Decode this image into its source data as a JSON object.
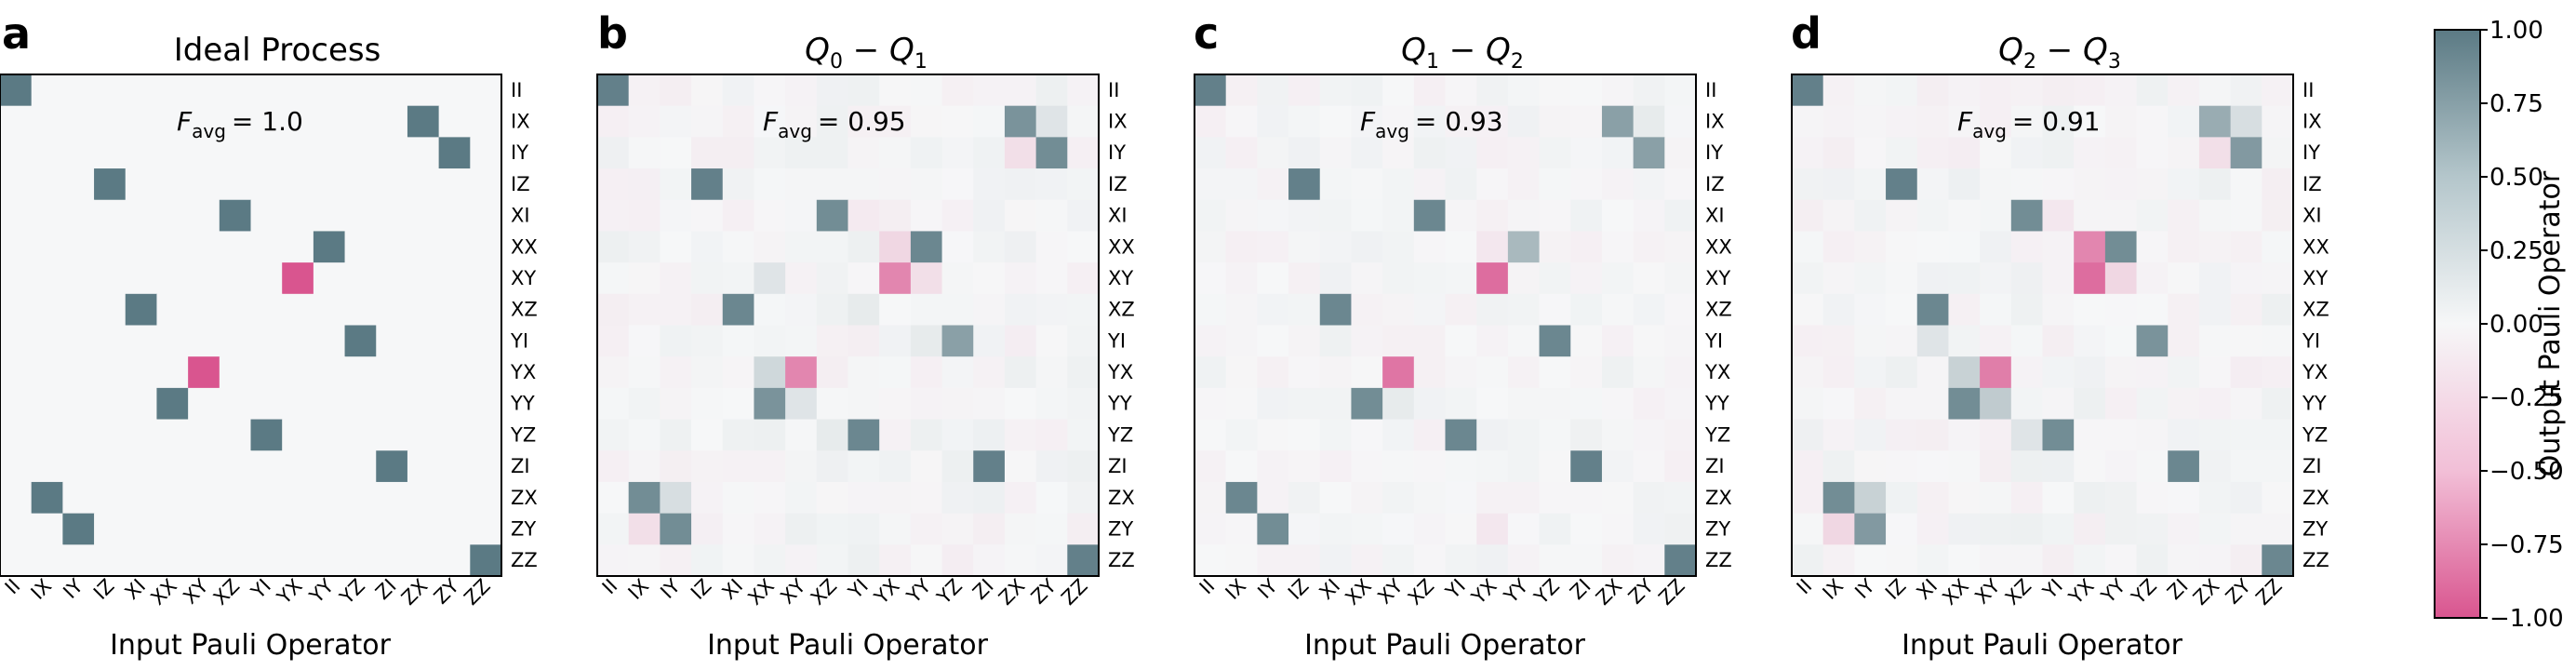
{
  "chart_data": {
    "type": "heatmap",
    "operators": [
      "II",
      "IX",
      "IY",
      "IZ",
      "XI",
      "XX",
      "XY",
      "XZ",
      "YI",
      "YX",
      "YY",
      "YZ",
      "ZI",
      "ZX",
      "ZY",
      "ZZ"
    ],
    "xlabel": "Input Pauli Operator",
    "ylabel": "Output Pauli Operator",
    "colorbar": {
      "min": -1.0,
      "max": 1.0,
      "ticks": [
        "1.00",
        "0.75",
        "0.50",
        "0.25",
        "0.00",
        "−0.25",
        "−0.50",
        "−0.75",
        "−1.00"
      ],
      "positive_color": "#5b7a84",
      "neutral_color": "#f6f7f8",
      "negative_color": "#d9558f"
    },
    "panels": [
      {
        "letter": "a",
        "title": "Ideal Process",
        "favg_label": "F",
        "favg_sub": "avg",
        "favg_value": "= 1.0",
        "noise": 0.0,
        "entries": [
          [
            0,
            0,
            1
          ],
          [
            1,
            13,
            1
          ],
          [
            2,
            14,
            1
          ],
          [
            3,
            3,
            1
          ],
          [
            4,
            7,
            1
          ],
          [
            5,
            10,
            1
          ],
          [
            6,
            9,
            -1
          ],
          [
            7,
            4,
            1
          ],
          [
            8,
            11,
            1
          ],
          [
            9,
            6,
            -1
          ],
          [
            10,
            5,
            1
          ],
          [
            11,
            8,
            1
          ],
          [
            12,
            12,
            1
          ],
          [
            13,
            1,
            1
          ],
          [
            14,
            2,
            1
          ],
          [
            15,
            15,
            1
          ]
        ]
      },
      {
        "letter": "b",
        "title_parts": [
          "Q",
          "0",
          " − ",
          "Q",
          "1"
        ],
        "favg_label": "F",
        "favg_sub": "avg",
        "favg_value": "= 0.95",
        "noise": 0.06,
        "entries": [
          [
            0,
            0,
            0.95
          ],
          [
            1,
            13,
            0.8
          ],
          [
            1,
            14,
            0.15
          ],
          [
            2,
            13,
            -0.15
          ],
          [
            2,
            14,
            0.85
          ],
          [
            3,
            3,
            0.95
          ],
          [
            4,
            7,
            0.85
          ],
          [
            4,
            8,
            -0.08
          ],
          [
            5,
            9,
            -0.2
          ],
          [
            5,
            10,
            0.9
          ],
          [
            6,
            5,
            0.15
          ],
          [
            6,
            9,
            -0.7
          ],
          [
            6,
            10,
            -0.15
          ],
          [
            7,
            4,
            0.9
          ],
          [
            7,
            8,
            0.1
          ],
          [
            8,
            11,
            0.7
          ],
          [
            8,
            10,
            0.1
          ],
          [
            9,
            5,
            0.25
          ],
          [
            9,
            6,
            -0.7
          ],
          [
            10,
            5,
            0.8
          ],
          [
            10,
            6,
            0.15
          ],
          [
            11,
            8,
            0.9
          ],
          [
            11,
            7,
            0.1
          ],
          [
            12,
            12,
            0.95
          ],
          [
            13,
            1,
            0.85
          ],
          [
            13,
            2,
            0.2
          ],
          [
            14,
            1,
            -0.15
          ],
          [
            14,
            2,
            0.85
          ],
          [
            15,
            15,
            0.95
          ]
        ]
      },
      {
        "letter": "c",
        "title_parts": [
          "Q",
          "1",
          " − ",
          "Q",
          "2"
        ],
        "favg_label": "F",
        "favg_sub": "avg",
        "favg_value": "= 0.93",
        "noise": 0.05,
        "entries": [
          [
            0,
            0,
            0.95
          ],
          [
            1,
            13,
            0.7
          ],
          [
            1,
            14,
            0.1
          ],
          [
            2,
            14,
            0.7
          ],
          [
            3,
            3,
            0.95
          ],
          [
            4,
            7,
            0.9
          ],
          [
            5,
            10,
            0.5
          ],
          [
            5,
            9,
            -0.1
          ],
          [
            6,
            9,
            -0.85
          ],
          [
            7,
            4,
            0.9
          ],
          [
            8,
            11,
            0.9
          ],
          [
            9,
            6,
            -0.8
          ],
          [
            10,
            5,
            0.85
          ],
          [
            10,
            6,
            0.1
          ],
          [
            11,
            8,
            0.9
          ],
          [
            12,
            12,
            0.95
          ],
          [
            13,
            1,
            0.9
          ],
          [
            14,
            2,
            0.85
          ],
          [
            14,
            9,
            -0.1
          ],
          [
            15,
            15,
            0.95
          ]
        ]
      },
      {
        "letter": "d",
        "title_parts": [
          "Q",
          "2",
          " − ",
          "Q",
          "3"
        ],
        "favg_label": "F",
        "favg_sub": "avg",
        "favg_value": "= 0.91",
        "noise": 0.06,
        "entries": [
          [
            0,
            0,
            0.95
          ],
          [
            1,
            13,
            0.6
          ],
          [
            1,
            14,
            0.2
          ],
          [
            2,
            13,
            -0.15
          ],
          [
            2,
            14,
            0.75
          ],
          [
            3,
            3,
            0.95
          ],
          [
            4,
            7,
            0.85
          ],
          [
            4,
            8,
            -0.1
          ],
          [
            5,
            9,
            -0.7
          ],
          [
            5,
            10,
            0.85
          ],
          [
            6,
            9,
            -0.85
          ],
          [
            6,
            10,
            -0.2
          ],
          [
            7,
            4,
            0.9
          ],
          [
            8,
            4,
            0.15
          ],
          [
            8,
            11,
            0.8
          ],
          [
            9,
            5,
            0.3
          ],
          [
            9,
            6,
            -0.75
          ],
          [
            10,
            5,
            0.85
          ],
          [
            10,
            6,
            0.35
          ],
          [
            11,
            8,
            0.85
          ],
          [
            11,
            7,
            0.15
          ],
          [
            12,
            12,
            0.9
          ],
          [
            13,
            1,
            0.85
          ],
          [
            13,
            2,
            0.3
          ],
          [
            14,
            1,
            -0.2
          ],
          [
            14,
            2,
            0.75
          ],
          [
            15,
            15,
            0.9
          ]
        ]
      }
    ]
  }
}
